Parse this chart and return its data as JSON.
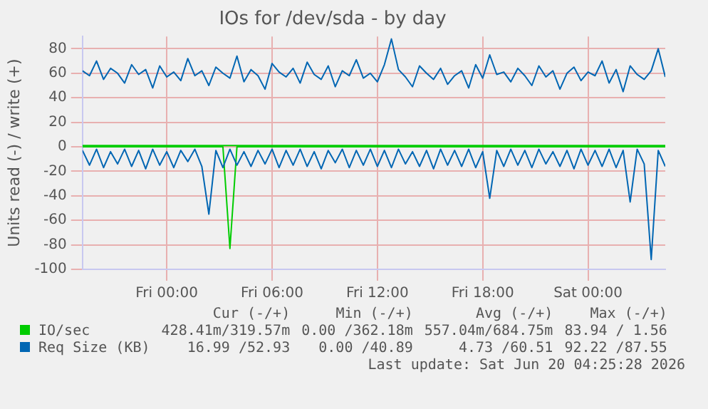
{
  "chart_data": {
    "type": "line",
    "title": "IOs for /dev/sda - by day",
    "ylabel": "Units read (-) / write (+)",
    "x": [
      "2026-06-18T19:12",
      "2026-06-18T19:36",
      "2026-06-18T20:00",
      "2026-06-18T20:24",
      "2026-06-18T20:48",
      "2026-06-18T21:12",
      "2026-06-18T21:36",
      "2026-06-18T22:00",
      "2026-06-18T22:24",
      "2026-06-18T22:48",
      "2026-06-18T23:12",
      "2026-06-18T23:36",
      "2026-06-19T00:00",
      "2026-06-19T00:24",
      "2026-06-19T00:48",
      "2026-06-19T01:12",
      "2026-06-19T01:36",
      "2026-06-19T02:00",
      "2026-06-19T02:24",
      "2026-06-19T02:48",
      "2026-06-19T03:12",
      "2026-06-19T03:36",
      "2026-06-19T04:00",
      "2026-06-19T04:24",
      "2026-06-19T04:48",
      "2026-06-19T05:12",
      "2026-06-19T05:36",
      "2026-06-19T06:00",
      "2026-06-19T06:24",
      "2026-06-19T06:48",
      "2026-06-19T07:12",
      "2026-06-19T07:36",
      "2026-06-19T08:00",
      "2026-06-19T08:24",
      "2026-06-19T08:48",
      "2026-06-19T09:12",
      "2026-06-19T09:36",
      "2026-06-19T10:00",
      "2026-06-19T10:24",
      "2026-06-19T10:48",
      "2026-06-19T11:12",
      "2026-06-19T11:36",
      "2026-06-19T12:00",
      "2026-06-19T12:24",
      "2026-06-19T12:48",
      "2026-06-19T13:12",
      "2026-06-19T13:36",
      "2026-06-19T14:00",
      "2026-06-19T14:24",
      "2026-06-19T14:48",
      "2026-06-19T15:12",
      "2026-06-19T15:36",
      "2026-06-19T16:00",
      "2026-06-19T16:24",
      "2026-06-19T16:48",
      "2026-06-19T17:12",
      "2026-06-19T17:36",
      "2026-06-19T18:00",
      "2026-06-19T18:24",
      "2026-06-19T18:48",
      "2026-06-19T19:12",
      "2026-06-19T19:36",
      "2026-06-19T20:00",
      "2026-06-19T20:24",
      "2026-06-19T20:48",
      "2026-06-19T21:12",
      "2026-06-19T21:36",
      "2026-06-19T22:00",
      "2026-06-19T22:24",
      "2026-06-19T22:48",
      "2026-06-19T23:12",
      "2026-06-19T23:36",
      "2026-06-20T00:00",
      "2026-06-20T00:24",
      "2026-06-20T00:48",
      "2026-06-20T01:12",
      "2026-06-20T01:36",
      "2026-06-20T02:00",
      "2026-06-20T02:24",
      "2026-06-20T02:48",
      "2026-06-20T03:12",
      "2026-06-20T03:36",
      "2026-06-20T04:00",
      "2026-06-20T04:24"
    ],
    "series": [
      {
        "name": "IO/sec",
        "color": "#00cc00",
        "values": [
          1,
          1,
          1,
          1,
          1,
          1,
          1,
          1,
          1,
          1,
          1,
          1,
          1,
          1,
          1,
          1,
          1,
          1,
          1,
          1,
          1,
          1,
          1,
          1,
          1,
          1,
          1,
          1,
          1,
          1,
          1,
          1,
          1,
          1,
          1,
          1,
          1,
          1,
          1,
          1,
          1,
          1,
          1,
          1,
          1,
          1,
          1,
          1,
          1,
          1,
          1,
          1,
          1,
          1,
          1,
          1,
          1,
          1,
          1,
          1,
          1,
          1,
          1,
          1,
          1,
          1,
          1,
          1,
          1,
          1,
          1,
          1,
          1,
          1,
          1,
          1,
          1,
          1,
          1,
          1,
          1,
          1,
          1,
          1
        ]
      },
      {
        "color": "#00cc00",
        "values": [
          0,
          0,
          0,
          0,
          0,
          0,
          0,
          0,
          0,
          0,
          0,
          0,
          0,
          0,
          0,
          0,
          0,
          0,
          0,
          0,
          0,
          -83,
          0,
          0,
          0,
          0,
          0,
          0,
          0,
          0,
          0,
          0,
          0,
          0,
          0,
          0,
          0,
          0,
          0,
          0,
          0,
          0,
          0,
          0,
          0,
          0,
          0,
          0,
          0,
          0,
          0,
          0,
          0,
          0,
          0,
          0,
          0,
          0,
          0,
          0,
          0,
          0,
          0,
          0,
          0,
          0,
          0,
          0,
          0,
          0,
          0,
          0,
          0,
          0,
          0,
          0,
          0,
          0,
          0,
          0,
          0,
          0,
          0,
          0
        ]
      },
      {
        "name": "Req Size (KB)",
        "color": "#0066b3",
        "values": [
          62,
          58,
          70,
          55,
          64,
          60,
          52,
          67,
          59,
          63,
          48,
          66,
          57,
          61,
          54,
          72,
          58,
          62,
          50,
          65,
          60,
          56,
          74,
          53,
          63,
          58,
          47,
          68,
          61,
          57,
          64,
          52,
          69,
          59,
          55,
          66,
          49,
          62,
          58,
          71,
          56,
          60,
          53,
          67,
          88,
          63,
          57,
          49,
          66,
          60,
          55,
          64,
          51,
          58,
          62,
          48,
          67,
          56,
          75,
          59,
          61,
          53,
          64,
          58,
          50,
          66,
          57,
          62,
          47,
          60,
          65,
          54,
          61,
          58,
          70,
          52,
          63,
          45,
          66,
          59,
          55,
          62,
          80,
          57
        ]
      },
      {
        "color": "#0066b3",
        "values": [
          -3,
          -15,
          -2,
          -17,
          -4,
          -14,
          -2,
          -16,
          -3,
          -18,
          -2,
          -15,
          -4,
          -17,
          -3,
          -12,
          -2,
          -16,
          -55,
          -3,
          -17,
          -2,
          -15,
          -4,
          -16,
          -3,
          -14,
          -2,
          -17,
          -3,
          -15,
          -2,
          -16,
          -4,
          -18,
          -3,
          -13,
          -2,
          -17,
          -3,
          -15,
          -2,
          -16,
          -3,
          -17,
          -2,
          -14,
          -4,
          -16,
          -3,
          -18,
          -2,
          -15,
          -3,
          -16,
          -2,
          -17,
          -4,
          -42,
          -3,
          -16,
          -2,
          -15,
          -3,
          -17,
          -2,
          -14,
          -4,
          -16,
          -3,
          -18,
          -2,
          -15,
          -3,
          -16,
          -2,
          -17,
          -3,
          -45,
          -2,
          -14,
          -92,
          -3,
          -16
        ]
      }
    ],
    "xlim": [
      "2026-06-18T19:12",
      "2026-06-20T04:24"
    ],
    "xticks": [
      {
        "value": "2026-06-19T00:00",
        "label": "Fri 00:00"
      },
      {
        "value": "2026-06-19T06:00",
        "label": "Fri 06:00"
      },
      {
        "value": "2026-06-19T12:00",
        "label": "Fri 12:00"
      },
      {
        "value": "2026-06-19T18:00",
        "label": "Fri 18:00"
      },
      {
        "value": "2026-06-20T00:00",
        "label": "Sat 00:00"
      }
    ],
    "ylim": [
      -100,
      90
    ],
    "yticks": [
      -100,
      -80,
      -60,
      -40,
      -20,
      0,
      20,
      40,
      60,
      80
    ],
    "grid": true,
    "legend": "bottom",
    "marker": "none",
    "line_style": "solid",
    "annotations": [
      "Cur (-/+)",
      "Min (-/+)",
      "Avg (-/+)",
      "Max (-/+)",
      "428.41m/319.57m",
      "0.00 /362.18m",
      "557.04m/684.75m",
      "83.94 / 1.56",
      "16.99 /52.93",
      "0.00 /40.89",
      "4.73 /60.51",
      "92.22 /87.55",
      "Last update: Sat Jun 20 04:25:28 2026"
    ]
  }
}
